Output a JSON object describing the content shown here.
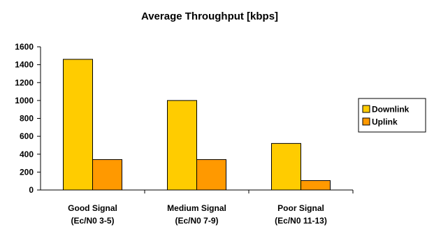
{
  "chart_data": {
    "type": "bar",
    "title": "Average Throughput [kbps]",
    "categories": [
      [
        "Good Signal",
        "(Ec/N0 3-5)"
      ],
      [
        "Medium Signal",
        "(Ec/N0 7-9)"
      ],
      [
        "Poor Signal",
        "(Ec/N0 11-13)"
      ]
    ],
    "series": [
      {
        "name": "Downlink",
        "color": "#FFCC00",
        "values": [
          1460,
          1000,
          520
        ]
      },
      {
        "name": "Uplink",
        "color": "#FF9900",
        "values": [
          340,
          340,
          105
        ]
      }
    ],
    "yticks": [
      "0",
      "200",
      "400",
      "600",
      "800",
      "1000",
      "1200",
      "1400",
      "1600"
    ],
    "ylim": [
      0,
      1600
    ],
    "grid": false,
    "legend_position": "right"
  }
}
